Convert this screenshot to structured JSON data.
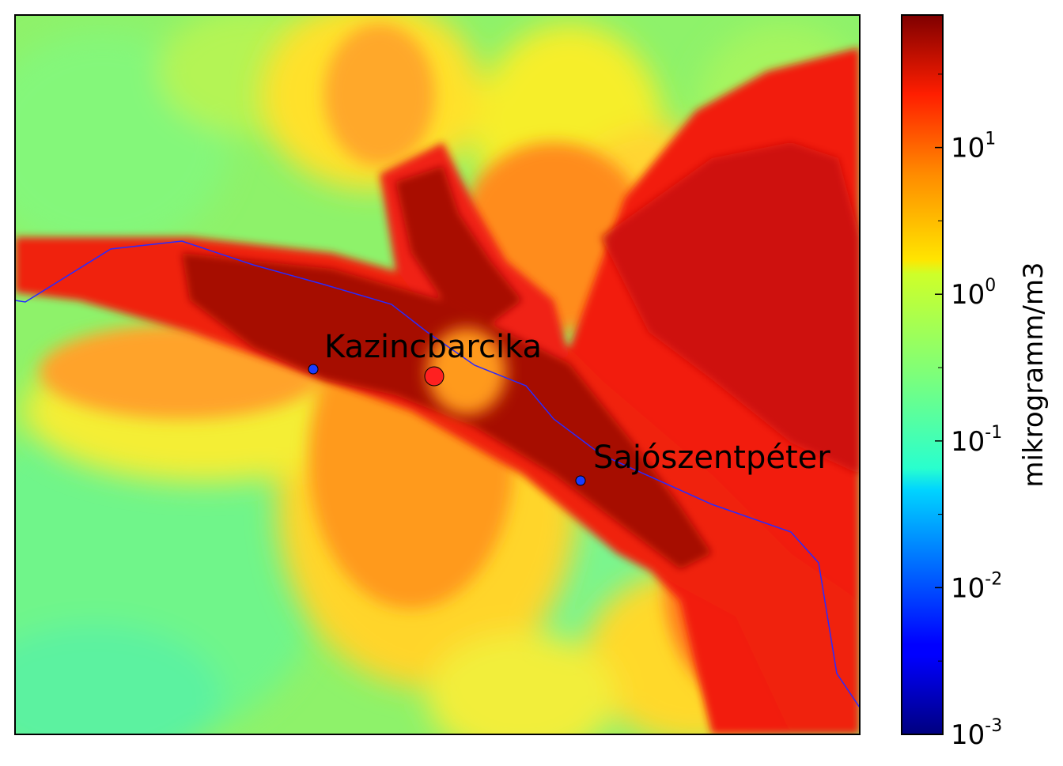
{
  "map": {
    "places": [
      {
        "name": "Kazincbarcika",
        "marker": "red-large",
        "color": "#ff2020"
      },
      {
        "name": "Sajószentpéter",
        "marker": "blue-small",
        "color": "#1a3cff"
      }
    ],
    "unlabeled_points": [
      {
        "marker": "blue-small",
        "color": "#1a3cff"
      }
    ],
    "river_color": "#2a2aff"
  },
  "colorbar": {
    "label": "mikrogramm/m3",
    "colormap": "jet",
    "scale": "log",
    "ticks": [
      {
        "base": "10",
        "exp": "1",
        "value": 10
      },
      {
        "base": "10",
        "exp": "0",
        "value": 1
      },
      {
        "base": "10",
        "exp": "-1",
        "value": 0.1
      },
      {
        "base": "10",
        "exp": "-2",
        "value": 0.01
      },
      {
        "base": "10",
        "exp": "-3",
        "value": 0.001
      }
    ],
    "range": [
      0.001,
      80
    ]
  }
}
